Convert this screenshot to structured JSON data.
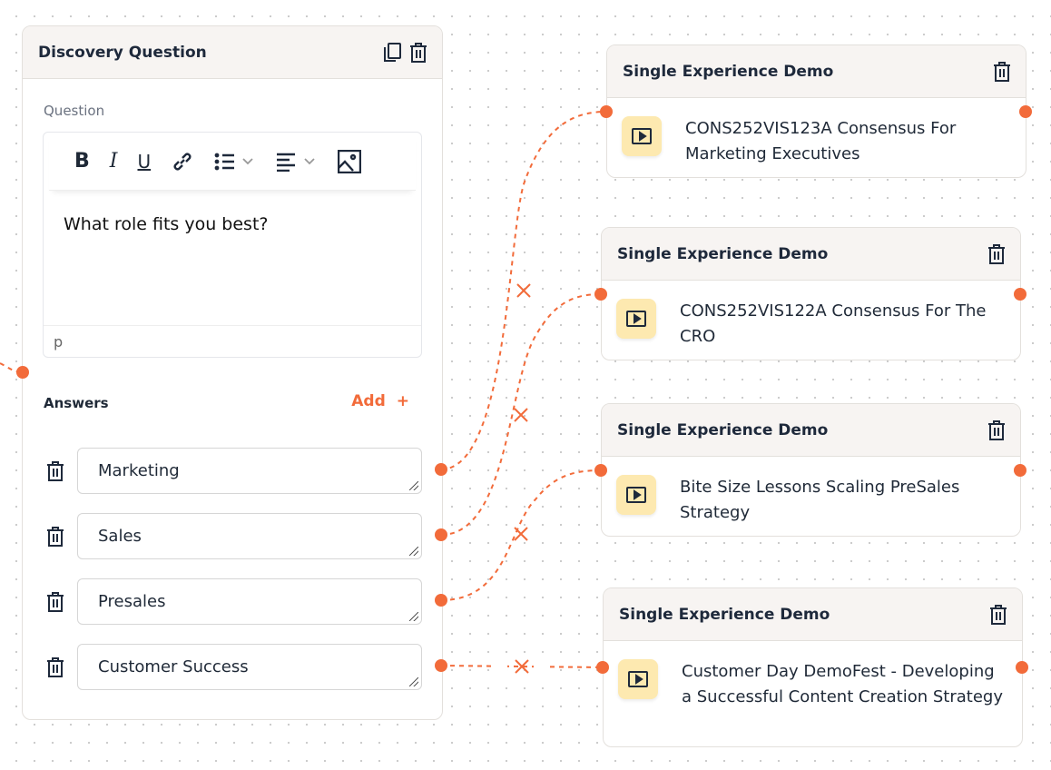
{
  "question_card": {
    "title": "Discovery Question",
    "question_label": "Question",
    "question_text": "What role fits you best?",
    "element_tag": "p",
    "answers_label": "Answers",
    "add_label": "Add",
    "answers": [
      "Marketing",
      "Sales",
      "Presales",
      "Customer Success"
    ]
  },
  "demo_cards": [
    {
      "title": "Single Experience Demo",
      "name": "CONS252VIS123A Consensus For Marketing Executives"
    },
    {
      "title": "Single Experience Demo",
      "name": "CONS252VIS122A Consensus For The CRO"
    },
    {
      "title": "Single Experience Demo",
      "name": "Bite Size Lessons Scaling PreSales Strategy"
    },
    {
      "title": "Single Experience Demo",
      "name": "Customer Day DemoFest - Developing a Successful Content Creation Strategy"
    }
  ],
  "colors": {
    "accent": "#f26b3a",
    "icon_bg": "#fde9b0",
    "header_bg": "#f7f4f2"
  }
}
